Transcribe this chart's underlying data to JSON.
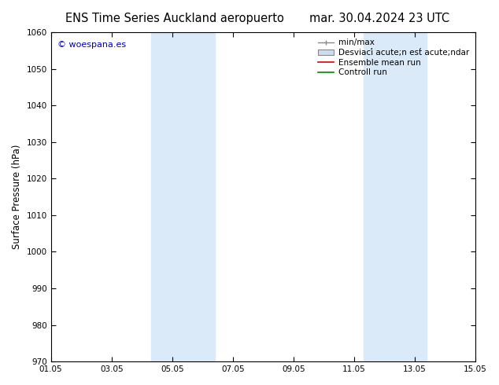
{
  "title_left": "ENS Time Series Auckland aeropuerto",
  "title_right": "mar. 30.04.2024 23 UTC",
  "ylabel": "Surface Pressure (hPa)",
  "ylim": [
    970,
    1060
  ],
  "yticks": [
    970,
    980,
    990,
    1000,
    1010,
    1020,
    1030,
    1040,
    1050,
    1060
  ],
  "xlim_start": 0,
  "xlim_end": 14,
  "xtick_positions": [
    0,
    2,
    4,
    6,
    8,
    10,
    12,
    14
  ],
  "xtick_labels": [
    "01.05",
    "03.05",
    "05.05",
    "07.05",
    "09.05",
    "11.05",
    "13.05",
    "15.05"
  ],
  "shaded_bands": [
    {
      "xmin": 3.2,
      "xmax": 4.0,
      "color": "#ddeeff"
    },
    {
      "xmin": 4.0,
      "xmax": 5.4,
      "color": "#cce0f5"
    },
    {
      "xmin": 10.2,
      "xmax": 11.0,
      "color": "#ddeeff"
    },
    {
      "xmin": 11.0,
      "xmax": 12.4,
      "color": "#cce0f5"
    }
  ],
  "watermark_text": "© woespana.es",
  "watermark_color": "#0000bb",
  "legend_label_minmax": "min/max",
  "legend_label_std": "Desviací acute;n est́ acute;ndar",
  "legend_label_ensemble": "Ensemble mean run",
  "legend_label_control": "Controll run",
  "legend_color_minmax": "#888888",
  "legend_color_std": "#ccddee",
  "legend_color_ensemble": "#dd0000",
  "legend_color_control": "#008800",
  "background_color": "#ffffff",
  "plot_bg_color": "#ffffff",
  "axis_label_fontsize": 8.5,
  "title_fontsize": 10.5,
  "tick_fontsize": 7.5,
  "legend_fontsize": 7.5
}
